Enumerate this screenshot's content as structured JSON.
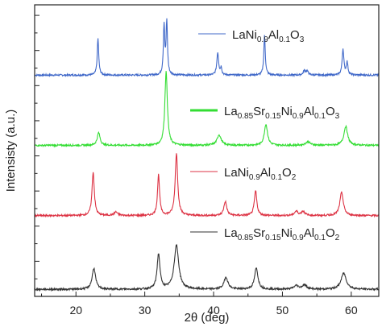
{
  "chart_data": {
    "type": "line",
    "title": "",
    "xlabel": "2θ (deg)",
    "ylabel": "Intensisty (a.u.)",
    "xlim": [
      14,
      64
    ],
    "x_ticks": [
      20,
      30,
      40,
      50,
      60
    ],
    "y_ticks_labeled": false,
    "grid": false,
    "legend": "per-series labels placed beside each curve",
    "series": [
      {
        "name": "LaNi0.9Al0.1O3",
        "legend_parts": [
          [
            "LaNi",
            ""
          ],
          [
            "0.9",
            "sub"
          ],
          [
            "Al",
            ""
          ],
          [
            "0.1",
            "sub"
          ],
          [
            "O",
            ""
          ],
          [
            "3",
            "sub"
          ]
        ],
        "color": "#4169c9",
        "offset": 3,
        "baseline": 0.15,
        "peaks": [
          [
            23.2,
            0.52,
            0.13
          ],
          [
            32.8,
            0.7,
            0.12
          ],
          [
            33.2,
            0.75,
            0.12
          ],
          [
            40.6,
            0.32,
            0.16
          ],
          [
            41.1,
            0.1,
            0.12
          ],
          [
            47.4,
            0.56,
            0.13
          ],
          [
            53.2,
            0.06,
            0.2
          ],
          [
            53.6,
            0.05,
            0.2
          ],
          [
            58.8,
            0.37,
            0.15
          ],
          [
            59.4,
            0.18,
            0.14
          ]
        ]
      },
      {
        "name": "La0.85Sr0.15Ni0.9Al0.1O3",
        "legend_parts": [
          [
            "La",
            ""
          ],
          [
            "0.85",
            "sub"
          ],
          [
            "Sr",
            ""
          ],
          [
            "0.15",
            "sub"
          ],
          [
            "Ni",
            ""
          ],
          [
            "0.9",
            "sub"
          ],
          [
            "Al",
            ""
          ],
          [
            "0.1",
            "sub"
          ],
          [
            "O",
            ""
          ],
          [
            "3",
            "sub"
          ]
        ],
        "color": "#33dd33",
        "offset": 2,
        "baseline": 0.15,
        "peaks": [
          [
            23.3,
            0.18,
            0.25
          ],
          [
            33.1,
            1.05,
            0.22
          ],
          [
            40.8,
            0.15,
            0.35
          ],
          [
            47.6,
            0.3,
            0.28
          ],
          [
            53.7,
            0.05,
            0.4
          ],
          [
            59.2,
            0.27,
            0.32
          ]
        ]
      },
      {
        "name": "LaNi0.9Al0.1O2",
        "legend_parts": [
          [
            "LaNi",
            ""
          ],
          [
            "0.9",
            "sub"
          ],
          [
            "Al",
            ""
          ],
          [
            "0.1",
            "sub"
          ],
          [
            "O",
            ""
          ],
          [
            "2",
            "sub"
          ]
        ],
        "color": "#dd3344",
        "offset": 1,
        "baseline": 0.15,
        "peaks": [
          [
            22.5,
            0.62,
            0.2
          ],
          [
            25.8,
            0.05,
            0.3
          ],
          [
            32.0,
            0.58,
            0.18
          ],
          [
            34.6,
            0.88,
            0.22
          ],
          [
            41.7,
            0.2,
            0.25
          ],
          [
            46.1,
            0.35,
            0.22
          ],
          [
            52.0,
            0.06,
            0.3
          ],
          [
            53.0,
            0.06,
            0.3
          ],
          [
            58.6,
            0.33,
            0.3
          ]
        ]
      },
      {
        "name": "La0.85Sr0.15Ni0.9Al0.1O2",
        "legend_parts": [
          [
            "La",
            ""
          ],
          [
            "0.85",
            "sub"
          ],
          [
            "Sr",
            ""
          ],
          [
            "0.15",
            "sub"
          ],
          [
            "Ni",
            ""
          ],
          [
            "0.9",
            "sub"
          ],
          [
            "Al",
            ""
          ],
          [
            "0.1",
            "sub"
          ],
          [
            "O",
            ""
          ],
          [
            "2",
            "sub"
          ]
        ],
        "color": "#333333",
        "offset": 0,
        "baseline": 0.1,
        "peaks": [
          [
            22.6,
            0.3,
            0.3
          ],
          [
            32.0,
            0.5,
            0.25
          ],
          [
            34.6,
            0.62,
            0.4
          ],
          [
            41.8,
            0.17,
            0.35
          ],
          [
            46.2,
            0.3,
            0.3
          ],
          [
            52.0,
            0.05,
            0.4
          ],
          [
            53.2,
            0.06,
            0.4
          ],
          [
            58.9,
            0.23,
            0.45
          ]
        ]
      }
    ]
  }
}
